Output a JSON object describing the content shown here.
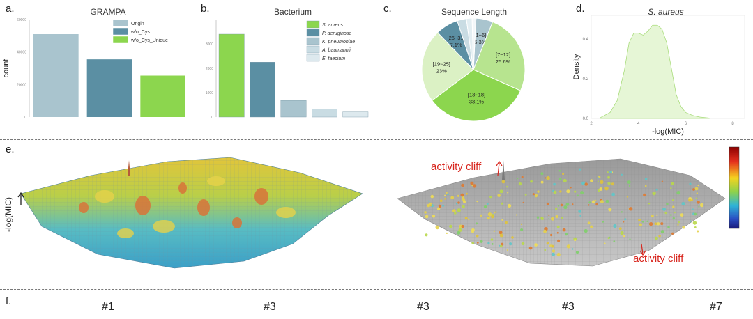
{
  "panels": {
    "a": {
      "label": "a.",
      "title": "GRAMPA"
    },
    "b": {
      "label": "b.",
      "title": "Bacterium"
    },
    "c": {
      "label": "c.",
      "title": "Sequence Length"
    },
    "d": {
      "label": "d.",
      "title": "S. aureus"
    },
    "e": {
      "label": "e.",
      "ylabel": "-log(MIC)",
      "annotation1": "activity cliff",
      "annotation2": "activity cliff"
    },
    "f": {
      "label": "f.",
      "items": [
        "#1",
        "#3",
        "#3",
        "#3",
        "#7"
      ]
    }
  },
  "colors": {
    "origin": "#a9c4ce",
    "wo_cys": "#5b8fa3",
    "wo_cys_unique": "#8cd64e",
    "cliff": "#d8261e"
  },
  "chart_data": [
    {
      "id": "a",
      "type": "bar",
      "title": "GRAMPA",
      "ylabel": "count",
      "xlabel": "",
      "ylim": [
        0,
        60000
      ],
      "yticks": [
        "0",
        "20000",
        "40000",
        "60000"
      ],
      "categories": [
        "Origin",
        "w/o_Cys",
        "w/o_Cys_Unique"
      ],
      "values": [
        51000,
        35500,
        25500
      ],
      "legend": [
        "Origin",
        "w/o_Cys",
        "w/o_Cys_Unique"
      ],
      "legend_position": "top-right"
    },
    {
      "id": "b",
      "type": "bar",
      "title": "Bacterium",
      "ylim": [
        0,
        4000
      ],
      "yticks": [
        "0",
        "1000",
        "2000",
        "3000"
      ],
      "categories": [
        "S. aureus",
        "P. aeruginosa",
        "K. pneumoniae",
        "A. baumannii",
        "E. faecium"
      ],
      "values": [
        3400,
        2250,
        680,
        330,
        210
      ],
      "legend": [
        "S. aureus",
        "P. aeruginosa",
        "K. pneumoniae",
        "A. baumannii",
        "E. faecium"
      ],
      "legend_position": "top-right"
    },
    {
      "id": "c",
      "type": "pie",
      "title": "Sequence Length",
      "slices": [
        {
          "label": "[1~6]",
          "pct": "5.3%",
          "value": 5.3
        },
        {
          "label": "[7~12]",
          "pct": "25.6%",
          "value": 25.6
        },
        {
          "label": "[13~18]",
          "pct": "33.1%",
          "value": 33.1
        },
        {
          "label": "[19~25]",
          "pct": "23%",
          "value": 23.0
        },
        {
          "label": "[26~31]",
          "pct": "7.1%",
          "value": 7.1
        },
        {
          "label": "",
          "pct": "",
          "value": 2.9
        },
        {
          "label": "",
          "pct": "",
          "value": 1.8
        },
        {
          "label": "",
          "pct": "",
          "value": 1.2
        }
      ]
    },
    {
      "id": "d",
      "type": "area",
      "title": "S. aureus",
      "xlabel": "-log(MIC)",
      "ylabel": "Density",
      "xlim": [
        2,
        8.5
      ],
      "ylim": [
        0,
        0.52
      ],
      "xticks": [
        2,
        4,
        6,
        8
      ],
      "yticks": [
        0.0,
        0.2,
        0.4
      ],
      "x": [
        2.4,
        2.8,
        3.1,
        3.4,
        3.6,
        3.8,
        4.0,
        4.2,
        4.4,
        4.6,
        4.8,
        5.0,
        5.2,
        5.4,
        5.6,
        5.8,
        6.0,
        6.3,
        6.6,
        7.0
      ],
      "y": [
        0.005,
        0.03,
        0.09,
        0.24,
        0.38,
        0.43,
        0.43,
        0.42,
        0.44,
        0.47,
        0.47,
        0.45,
        0.38,
        0.25,
        0.12,
        0.06,
        0.03,
        0.015,
        0.007,
        0.002
      ]
    }
  ]
}
